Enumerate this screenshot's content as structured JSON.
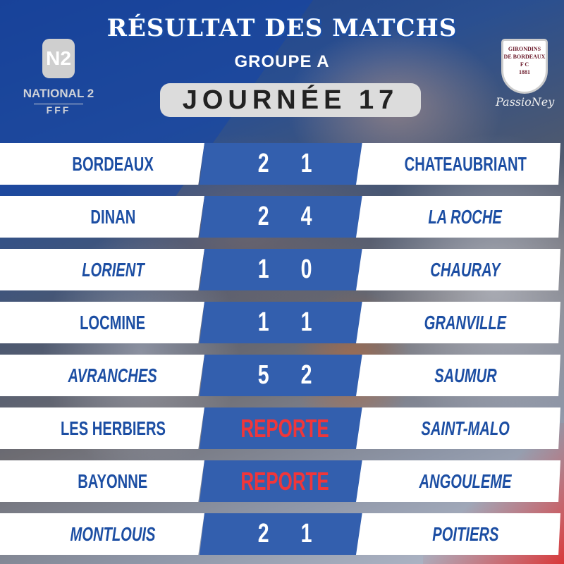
{
  "header": {
    "title": "RÉSULTAT DES MATCHS",
    "group": "GROUPE A",
    "matchday": "JOURNÉE 17"
  },
  "logos": {
    "league": {
      "badge": "N2",
      "name": "NATIONAL 2",
      "federation": "FFF"
    },
    "club": {
      "line1": "GIRONDINS",
      "line2": "DE BORDEAUX",
      "initials": "F C",
      "year": "1881",
      "signature": "PassioNey"
    }
  },
  "colors": {
    "accent_blue": "#335fae",
    "team_text": "#1c4ea3",
    "postponed_red": "#f0363a"
  },
  "matches": [
    {
      "home": "BORDEAUX",
      "home_italic": false,
      "home_score": "2",
      "away_score": "1",
      "away": "CHATEAUBRIANT",
      "away_italic": false,
      "postponed": false
    },
    {
      "home": "DINAN",
      "home_italic": false,
      "home_score": "2",
      "away_score": "4",
      "away": "LA ROCHE",
      "away_italic": true,
      "postponed": false
    },
    {
      "home": "LORIENT",
      "home_italic": true,
      "home_score": "1",
      "away_score": "0",
      "away": "CHAURAY",
      "away_italic": true,
      "postponed": false
    },
    {
      "home": "LOCMINE",
      "home_italic": false,
      "home_score": "1",
      "away_score": "1",
      "away": "GRANVILLE",
      "away_italic": true,
      "postponed": false
    },
    {
      "home": "AVRANCHES",
      "home_italic": true,
      "home_score": "5",
      "away_score": "2",
      "away": "SAUMUR",
      "away_italic": true,
      "postponed": false
    },
    {
      "home": "LES HERBIERS",
      "home_italic": false,
      "status": "REPORTE",
      "away": "SAINT-MALO",
      "away_italic": true,
      "postponed": true
    },
    {
      "home": "BAYONNE",
      "home_italic": false,
      "status": "REPORTE",
      "away": "ANGOULEME",
      "away_italic": true,
      "postponed": true
    },
    {
      "home": "MONTLOUIS",
      "home_italic": true,
      "home_score": "2",
      "away_score": "1",
      "away": "POITIERS",
      "away_italic": true,
      "postponed": false
    }
  ]
}
